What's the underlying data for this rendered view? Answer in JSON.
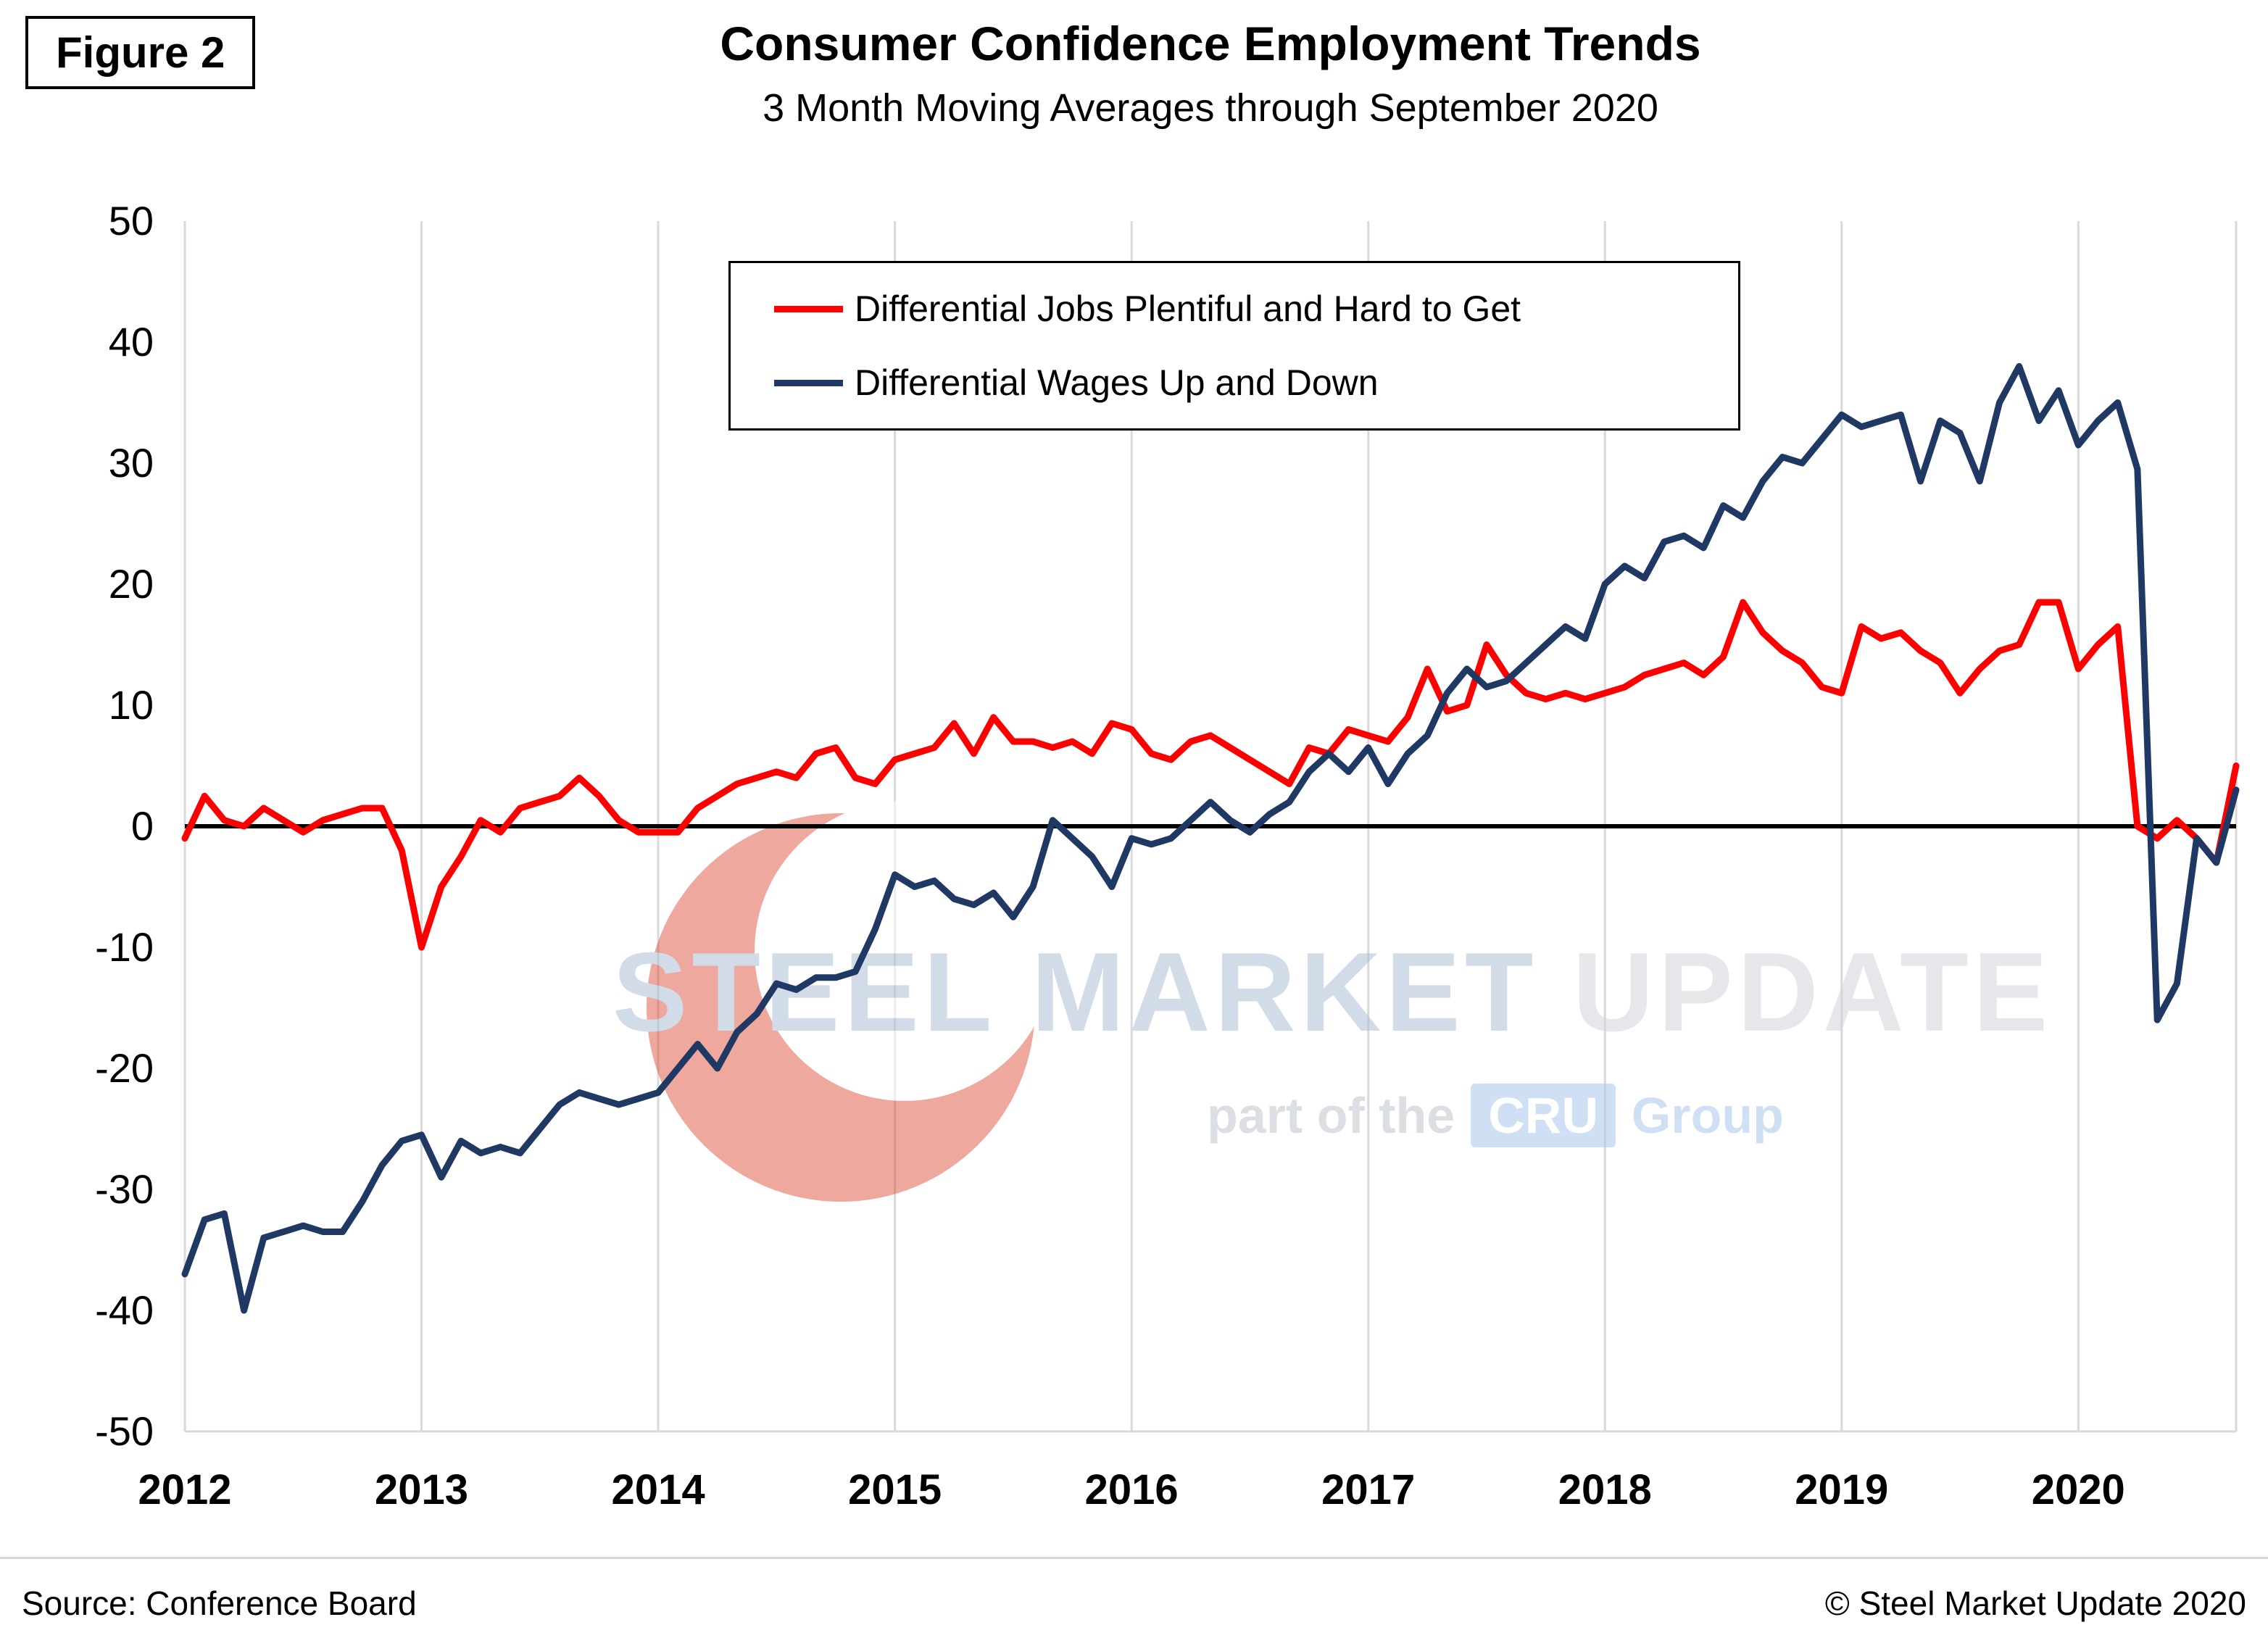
{
  "figure_label": "Figure 2",
  "title": "Consumer Confidence Employment Trends",
  "subtitle": "3 Month Moving Averages through September 2020",
  "legend": {
    "items": [
      {
        "label": "Differential Jobs Plentiful and Hard to Get",
        "color": "#ff0000"
      },
      {
        "label": "Differential Wages Up and Down",
        "color": "#1f3864"
      }
    ]
  },
  "chart_data": {
    "type": "line",
    "frequency": "monthly",
    "x_start": "2012-01",
    "x_end": "2020-09",
    "x_tick_labels": [
      "2012",
      "2013",
      "2014",
      "2015",
      "2016",
      "2017",
      "2018",
      "2019",
      "2020"
    ],
    "months_per_tick": 12,
    "ylim": [
      -50,
      50
    ],
    "ytick_step": 10,
    "grid": "vertical-only",
    "legend_position": "top-center",
    "zero_line": true,
    "series": [
      {
        "name": "Differential Jobs Plentiful and Hard to Get",
        "color": "#ff0000",
        "values": [
          -1,
          2.5,
          0.5,
          0,
          1.5,
          0.5,
          -0.5,
          0.5,
          1,
          1.5,
          1.5,
          -2,
          -10,
          -5,
          -2.5,
          0.5,
          -0.5,
          1.5,
          2,
          2.5,
          4,
          2.5,
          0.5,
          -0.5,
          -0.5,
          -0.5,
          1.5,
          2.5,
          3.5,
          4,
          4.5,
          4,
          6,
          6.5,
          4,
          3.5,
          5.5,
          6,
          6.5,
          8.5,
          6,
          9,
          7,
          7,
          6.5,
          7,
          6,
          8.5,
          8,
          6,
          5.5,
          7,
          7.5,
          6.5,
          5.5,
          4.5,
          3.5,
          6.5,
          6,
          8,
          7.5,
          7,
          9,
          13,
          9.5,
          10,
          15,
          12.5,
          11,
          10.5,
          11,
          10.5,
          11,
          11.5,
          12.5,
          13,
          13.5,
          12.5,
          14,
          18.5,
          16,
          14.5,
          13.5,
          11.5,
          11,
          16.5,
          15.5,
          16,
          14.5,
          13.5,
          11,
          13,
          14.5,
          15,
          18.5,
          18.5,
          13,
          15,
          16.5,
          0,
          -1,
          0.5,
          -1,
          -3,
          5
        ]
      },
      {
        "name": "Differential Wages Up and Down",
        "color": "#1f3864",
        "values": [
          -37,
          -32.5,
          -32,
          -40,
          -34,
          -33.5,
          -33,
          -33.5,
          -33.5,
          -31,
          -28,
          -26,
          -25.5,
          -29,
          -26,
          -27,
          -26.5,
          -27,
          -25,
          -23,
          -22,
          -22.5,
          -23,
          -22.5,
          -22,
          -20,
          -18,
          -20,
          -17,
          -15.5,
          -13,
          -13.5,
          -12.5,
          -12.5,
          -12,
          -8.5,
          -4,
          -5,
          -4.5,
          -6,
          -6.5,
          -5.5,
          -7.5,
          -5,
          0.5,
          -1,
          -2.5,
          -5,
          -1,
          -1.5,
          -1,
          0.5,
          2,
          0.5,
          -0.5,
          1,
          2,
          4.5,
          6,
          4.5,
          6.5,
          3.5,
          6,
          7.5,
          11,
          13,
          11.5,
          12,
          13.5,
          15,
          16.5,
          15.5,
          20,
          21.5,
          20.5,
          23.5,
          24,
          23,
          26.5,
          25.5,
          28.5,
          30.5,
          30,
          32,
          34,
          33,
          33.5,
          34,
          28.5,
          33.5,
          32.5,
          28.5,
          35,
          38,
          33.5,
          36,
          31.5,
          33.5,
          35,
          29.5,
          -16,
          -13,
          -1,
          -3,
          3
        ]
      }
    ]
  },
  "watermark": {
    "steel": "STEEL",
    "market": "MARKET",
    "update": "UPDATE",
    "tagline": "part of the",
    "cru": "CRU",
    "group": "Group"
  },
  "footer": {
    "source": "Source: Conference Board",
    "copyright": "© Steel Market Update 2020"
  }
}
